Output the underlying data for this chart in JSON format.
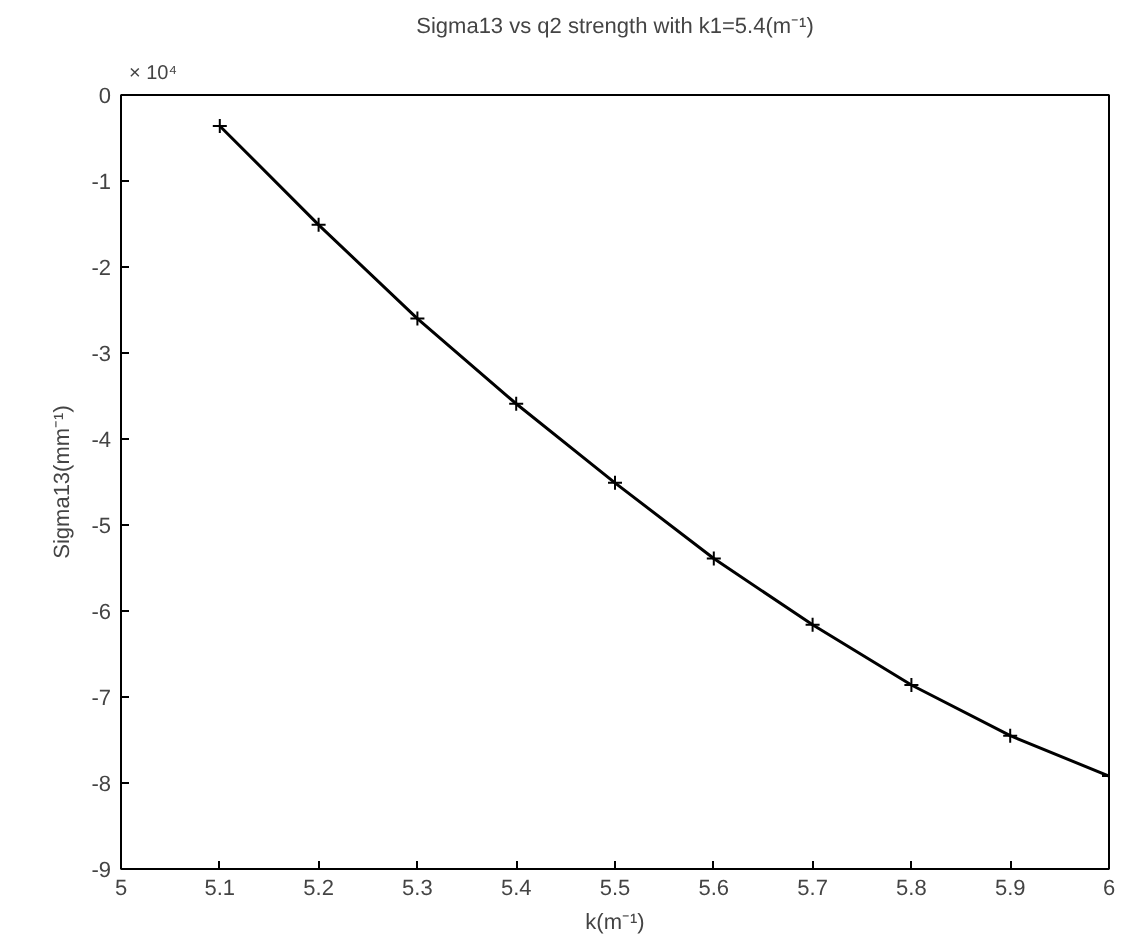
{
  "chart_data": {
    "type": "line",
    "title": "Sigma13 vs q2 strength with k1=5.4(m⁻¹)",
    "xlabel": "k(m⁻¹)",
    "ylabel": "Sigma13(mm⁻¹)",
    "annotations": [
      "× 10⁴"
    ],
    "x": [
      5.1,
      5.2,
      5.3,
      5.4,
      5.5,
      5.6,
      5.7,
      5.8,
      5.9,
      6.0
    ],
    "series": [
      {
        "color": "#000000",
        "values": [
          -0.36,
          -1.51,
          -2.6,
          -3.59,
          -4.51,
          -5.39,
          -6.16,
          -6.86,
          -7.45,
          -7.92
        ]
      }
    ],
    "xlim": [
      5,
      6
    ],
    "xticks": [
      5,
      5.1,
      5.2,
      5.3,
      5.4,
      5.5,
      5.6,
      5.7,
      5.8,
      5.9,
      6
    ],
    "ylim": [
      -9,
      0
    ],
    "yticks": [
      -9,
      -8,
      -7,
      -6,
      -5,
      -4,
      -3,
      -2,
      -1,
      0
    ],
    "marker": "cross",
    "line_style": "solid",
    "grid": false
  }
}
